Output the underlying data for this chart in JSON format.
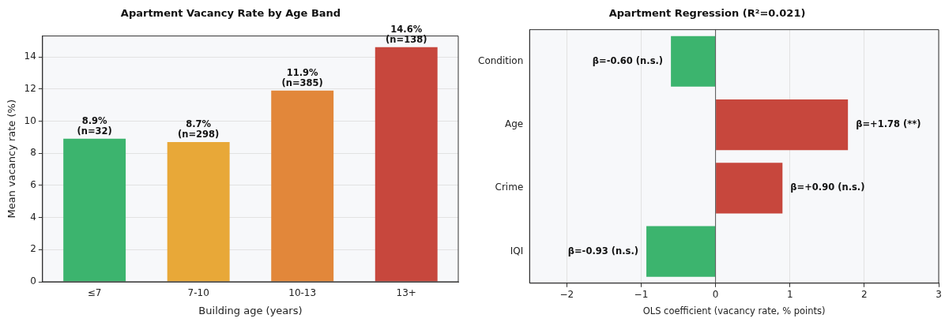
{
  "chart_data": [
    {
      "type": "bar",
      "title": "Apartment Vacancy Rate by Age Band",
      "xlabel": "Building age (years)",
      "ylabel": "Mean vacancy rate (%)",
      "categories": [
        "≤7",
        "7-10",
        "10-13",
        "13+"
      ],
      "values": [
        8.9,
        8.7,
        11.9,
        14.6
      ],
      "colors": [
        "#3cb46e",
        "#e8a838",
        "#e2873a",
        "#c7473d"
      ],
      "value_labels": [
        "8.9%\n(n=32)",
        "8.7%\n(n=298)",
        "11.9%\n(n=385)",
        "14.6%\n(n=138)"
      ],
      "ylim": [
        0,
        15.3
      ],
      "yticks": [
        0,
        2,
        4,
        6,
        8,
        10,
        12,
        14
      ],
      "grid": "y"
    },
    {
      "type": "bar",
      "orientation": "horizontal",
      "title": "Apartment Regression (R²=0.021)",
      "xlabel": "OLS coefficient (vacancy rate, % points)",
      "categories": [
        "Condition",
        "Age",
        "Crime",
        "IQI"
      ],
      "values": [
        -0.6,
        1.78,
        0.9,
        -0.93
      ],
      "colors": [
        "#3cb46e",
        "#c7473d",
        "#c7473d",
        "#3cb46e"
      ],
      "value_labels": [
        "β=-0.60 (n.s.)",
        "β=+1.78 (**)",
        "β=+0.90 (n.s.)",
        "β=-0.93 (n.s.)"
      ],
      "xlim": [
        -2.5,
        3
      ],
      "xticks": [
        {
          "value": -2,
          "label": "−2"
        },
        {
          "value": -1,
          "label": "−1"
        },
        0,
        1,
        2,
        3
      ],
      "grid": "x",
      "ref_lines": [
        {
          "axis": "x",
          "value": 0,
          "color": "#555555"
        }
      ]
    }
  ]
}
